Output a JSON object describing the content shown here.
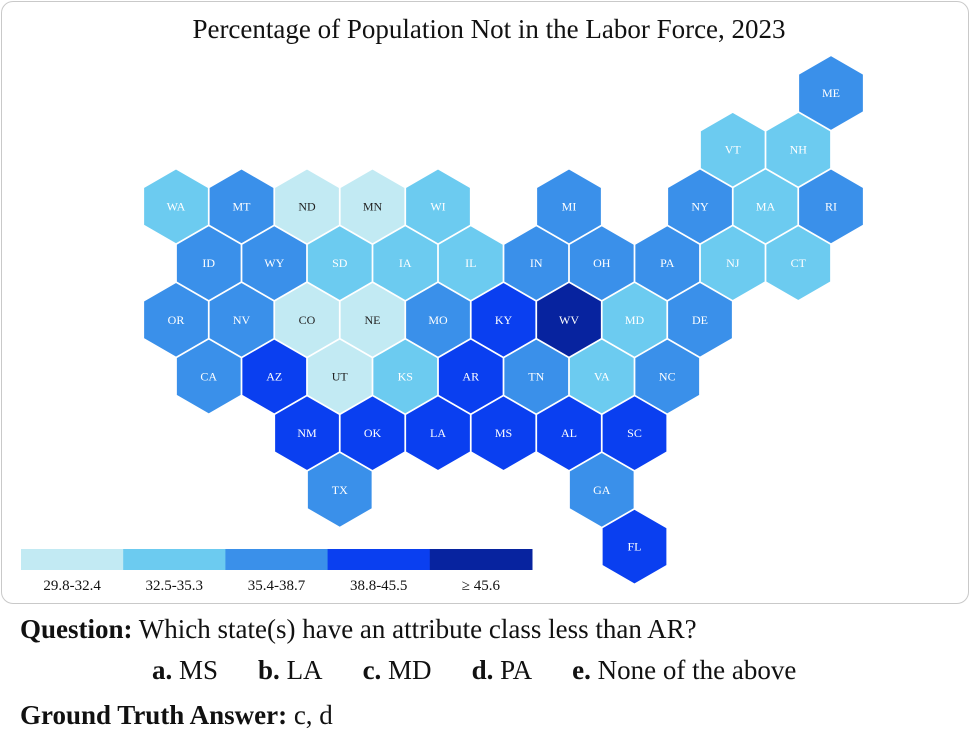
{
  "chart_data": {
    "type": "hex-tile choropleth map",
    "title": "Percentage of Population Not in the Labor Force, 2023",
    "legend": {
      "placement": "bottom-left",
      "classes": [
        {
          "label": "29.8-32.4",
          "color": "#c2eaf3"
        },
        {
          "label": "32.5-35.3",
          "color": "#6ccbf0"
        },
        {
          "label": "35.4-38.7",
          "color": "#3a90ea"
        },
        {
          "label": "38.8-45.5",
          "color": "#0a3ff0"
        },
        {
          "label": "≥ 45.6",
          "color": "#07239f"
        }
      ]
    },
    "states": [
      {
        "abbr": "ME",
        "row": 0,
        "col": 10,
        "class": 2
      },
      {
        "abbr": "VT",
        "row": 1,
        "col": 8.5,
        "class": 1
      },
      {
        "abbr": "NH",
        "row": 1,
        "col": 9.5,
        "class": 1
      },
      {
        "abbr": "WA",
        "row": 2,
        "col": 0,
        "class": 1
      },
      {
        "abbr": "MT",
        "row": 2,
        "col": 1,
        "class": 2
      },
      {
        "abbr": "ND",
        "row": 2,
        "col": 2,
        "class": 0
      },
      {
        "abbr": "MN",
        "row": 2,
        "col": 3,
        "class": 0
      },
      {
        "abbr": "WI",
        "row": 2,
        "col": 4,
        "class": 1
      },
      {
        "abbr": "MI",
        "row": 2,
        "col": 6,
        "class": 2
      },
      {
        "abbr": "NY",
        "row": 2,
        "col": 8,
        "class": 2
      },
      {
        "abbr": "MA",
        "row": 2,
        "col": 9,
        "class": 1
      },
      {
        "abbr": "RI",
        "row": 2,
        "col": 10,
        "class": 2
      },
      {
        "abbr": "ID",
        "row": 3,
        "col": 0.5,
        "class": 2
      },
      {
        "abbr": "WY",
        "row": 3,
        "col": 1.5,
        "class": 2
      },
      {
        "abbr": "SD",
        "row": 3,
        "col": 2.5,
        "class": 1
      },
      {
        "abbr": "IA",
        "row": 3,
        "col": 3.5,
        "class": 1
      },
      {
        "abbr": "IL",
        "row": 3,
        "col": 4.5,
        "class": 1
      },
      {
        "abbr": "IN",
        "row": 3,
        "col": 5.5,
        "class": 2
      },
      {
        "abbr": "OH",
        "row": 3,
        "col": 6.5,
        "class": 2
      },
      {
        "abbr": "PA",
        "row": 3,
        "col": 7.5,
        "class": 2
      },
      {
        "abbr": "NJ",
        "row": 3,
        "col": 8.5,
        "class": 1
      },
      {
        "abbr": "CT",
        "row": 3,
        "col": 9.5,
        "class": 1
      },
      {
        "abbr": "OR",
        "row": 4,
        "col": 0,
        "class": 2
      },
      {
        "abbr": "NV",
        "row": 4,
        "col": 1,
        "class": 2
      },
      {
        "abbr": "CO",
        "row": 4,
        "col": 2,
        "class": 0
      },
      {
        "abbr": "NE",
        "row": 4,
        "col": 3,
        "class": 0
      },
      {
        "abbr": "MO",
        "row": 4,
        "col": 4,
        "class": 2
      },
      {
        "abbr": "KY",
        "row": 4,
        "col": 5,
        "class": 3
      },
      {
        "abbr": "WV",
        "row": 4,
        "col": 6,
        "class": 4
      },
      {
        "abbr": "MD",
        "row": 4,
        "col": 7,
        "class": 1
      },
      {
        "abbr": "DE",
        "row": 4,
        "col": 8,
        "class": 2
      },
      {
        "abbr": "CA",
        "row": 5,
        "col": 0.5,
        "class": 2
      },
      {
        "abbr": "AZ",
        "row": 5,
        "col": 1.5,
        "class": 3
      },
      {
        "abbr": "UT",
        "row": 5,
        "col": 2.5,
        "class": 0
      },
      {
        "abbr": "KS",
        "row": 5,
        "col": 3.5,
        "class": 1
      },
      {
        "abbr": "AR",
        "row": 5,
        "col": 4.5,
        "class": 3
      },
      {
        "abbr": "TN",
        "row": 5,
        "col": 5.5,
        "class": 2
      },
      {
        "abbr": "VA",
        "row": 5,
        "col": 6.5,
        "class": 1
      },
      {
        "abbr": "NC",
        "row": 5,
        "col": 7.5,
        "class": 2
      },
      {
        "abbr": "NM",
        "row": 6,
        "col": 2,
        "class": 3
      },
      {
        "abbr": "OK",
        "row": 6,
        "col": 3,
        "class": 3
      },
      {
        "abbr": "LA",
        "row": 6,
        "col": 4,
        "class": 3
      },
      {
        "abbr": "MS",
        "row": 6,
        "col": 5,
        "class": 3
      },
      {
        "abbr": "AL",
        "row": 6,
        "col": 6,
        "class": 3
      },
      {
        "abbr": "SC",
        "row": 6,
        "col": 7,
        "class": 3
      },
      {
        "abbr": "TX",
        "row": 7,
        "col": 2.5,
        "class": 2
      },
      {
        "abbr": "GA",
        "row": 7,
        "col": 6.5,
        "class": 2
      },
      {
        "abbr": "FL",
        "row": 8,
        "col": 7,
        "class": 3
      }
    ]
  },
  "question": {
    "label": "Question:",
    "text": " Which state(s) have an attribute class less than AR?",
    "options": [
      {
        "letter": "a.",
        "text": " MS"
      },
      {
        "letter": "b.",
        "text": " LA"
      },
      {
        "letter": "c.",
        "text": " MD"
      },
      {
        "letter": "d.",
        "text": " PA"
      },
      {
        "letter": "e.",
        "text": " None of the above"
      }
    ]
  },
  "answer": {
    "label": "Ground Truth Answer:",
    "text": " c, d"
  }
}
